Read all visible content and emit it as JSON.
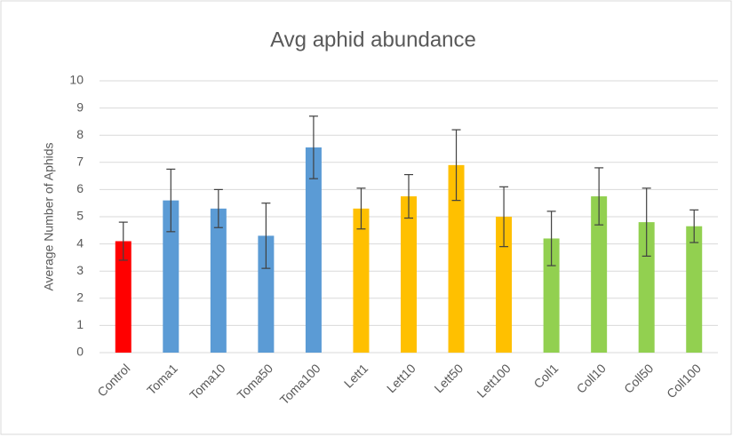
{
  "chart_data": {
    "type": "bar",
    "title": "Avg aphid abundance",
    "y_label": "Average Number  of Aphids",
    "categories": [
      "Control",
      "Toma1",
      "Toma10",
      "Toma50",
      "Toma100",
      "Lett1",
      "Lett10",
      "Lett50",
      "Lett100",
      "Coll1",
      "Coll10",
      "Coll50",
      "Coll100"
    ],
    "values": [
      4.1,
      5.6,
      5.3,
      4.3,
      7.55,
      5.3,
      5.75,
      6.9,
      5.0,
      4.2,
      5.75,
      4.8,
      4.65
    ],
    "errors": [
      0.7,
      1.15,
      0.7,
      1.2,
      1.15,
      0.75,
      0.8,
      1.3,
      1.1,
      1.0,
      1.05,
      1.25,
      0.6
    ],
    "colors": [
      "#ff0000",
      "#5b9bd5",
      "#5b9bd5",
      "#5b9bd5",
      "#5b9bd5",
      "#ffc000",
      "#ffc000",
      "#ffc000",
      "#ffc000",
      "#92d050",
      "#92d050",
      "#92d050",
      "#92d050"
    ],
    "ylim": [
      0,
      10
    ],
    "yticks": [
      0,
      1,
      2,
      3,
      4,
      5,
      6,
      7,
      8,
      9,
      10
    ],
    "grid": true
  }
}
